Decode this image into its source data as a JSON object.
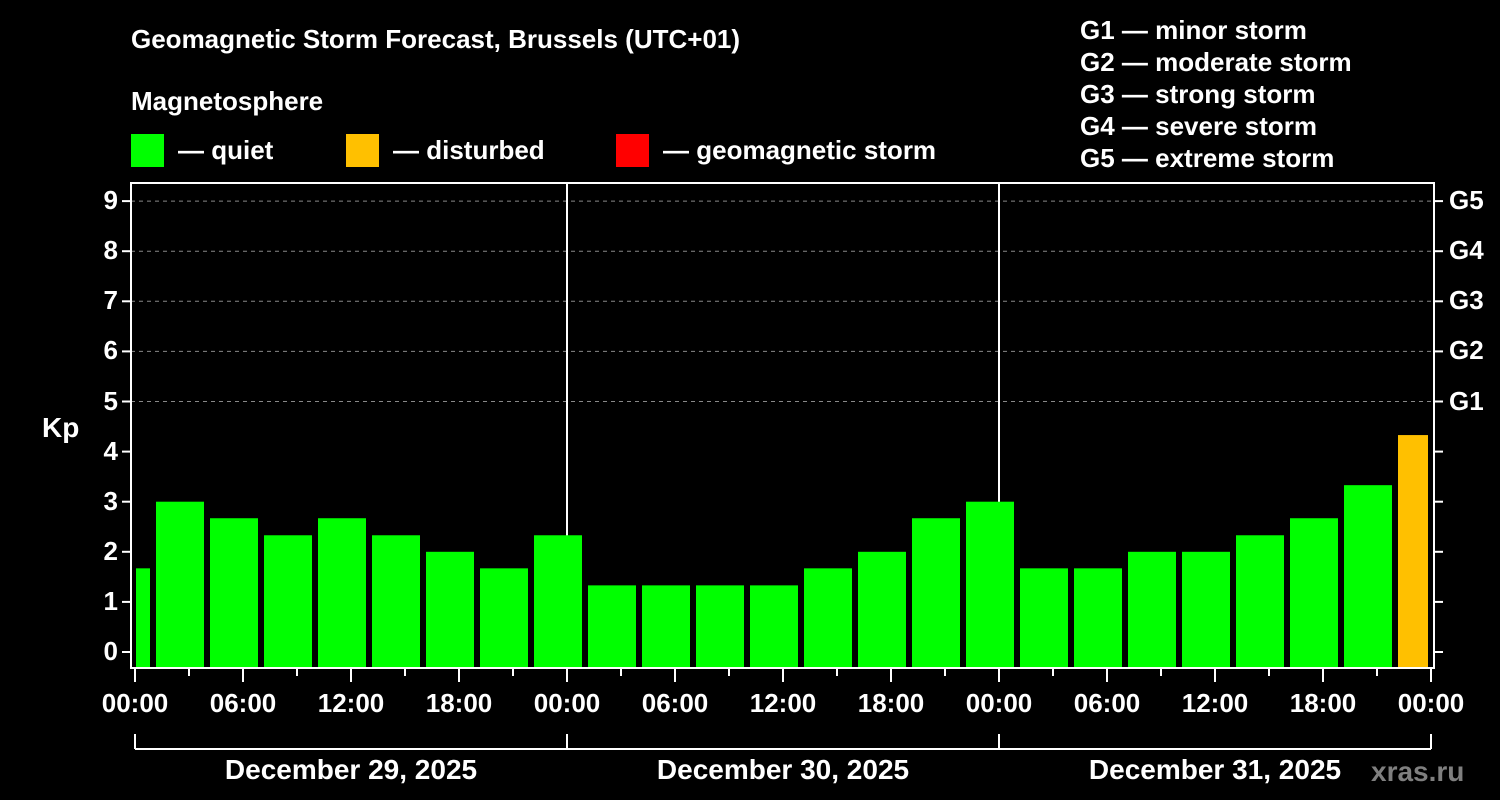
{
  "title": "Geomagnetic Storm Forecast, Brussels (UTC+01)",
  "subtitle": "Magnetosphere",
  "legend": [
    {
      "label": "— quiet",
      "color": "#00ff00"
    },
    {
      "label": "— disturbed",
      "color": "#ffc000"
    },
    {
      "label": "— geomagnetic storm",
      "color": "#ff0000"
    }
  ],
  "g_legend": [
    "G1 — minor storm",
    "G2 — moderate storm",
    "G3 — strong storm",
    "G4 — severe storm",
    "G5 — extreme storm"
  ],
  "y_axis_label": "Kp",
  "watermark": "xras.ru",
  "chart_data": {
    "type": "bar",
    "title": "Geomagnetic Storm Forecast, Brussels (UTC+01)",
    "xlabel": "",
    "ylabel": "Kp",
    "ylim": [
      0,
      9
    ],
    "yticks": [
      0,
      1,
      2,
      3,
      4,
      5,
      6,
      7,
      8,
      9
    ],
    "right_ticks": [
      {
        "value": 5,
        "label": "G1"
      },
      {
        "value": 6,
        "label": "G2"
      },
      {
        "value": 7,
        "label": "G3"
      },
      {
        "value": 8,
        "label": "G4"
      },
      {
        "value": 9,
        "label": "G5"
      }
    ],
    "xtick_labels": [
      "00:00",
      "06:00",
      "12:00",
      "18:00",
      "00:00",
      "06:00",
      "12:00",
      "18:00",
      "00:00",
      "06:00",
      "12:00",
      "18:00",
      "00:00"
    ],
    "dates": [
      "December 29, 2025",
      "December 30, 2025",
      "December 31, 2025"
    ],
    "grid": "dashed horizontal at Kp 5–9",
    "interval_hours": 3,
    "values": [
      1.67,
      3.0,
      2.67,
      2.33,
      2.67,
      2.33,
      2.0,
      1.67,
      2.33,
      1.33,
      1.33,
      1.33,
      1.33,
      1.67,
      2.0,
      2.67,
      3.0,
      1.67,
      1.67,
      2.0,
      2.0,
      2.33,
      2.67,
      3.33,
      4.33
    ],
    "status": [
      "quiet",
      "quiet",
      "quiet",
      "quiet",
      "quiet",
      "quiet",
      "quiet",
      "quiet",
      "quiet",
      "quiet",
      "quiet",
      "quiet",
      "quiet",
      "quiet",
      "quiet",
      "quiet",
      "quiet",
      "quiet",
      "quiet",
      "quiet",
      "quiet",
      "quiet",
      "quiet",
      "quiet",
      "disturbed"
    ],
    "colors": {
      "quiet": "#00ff00",
      "disturbed": "#ffc000",
      "storm": "#ff0000"
    }
  }
}
